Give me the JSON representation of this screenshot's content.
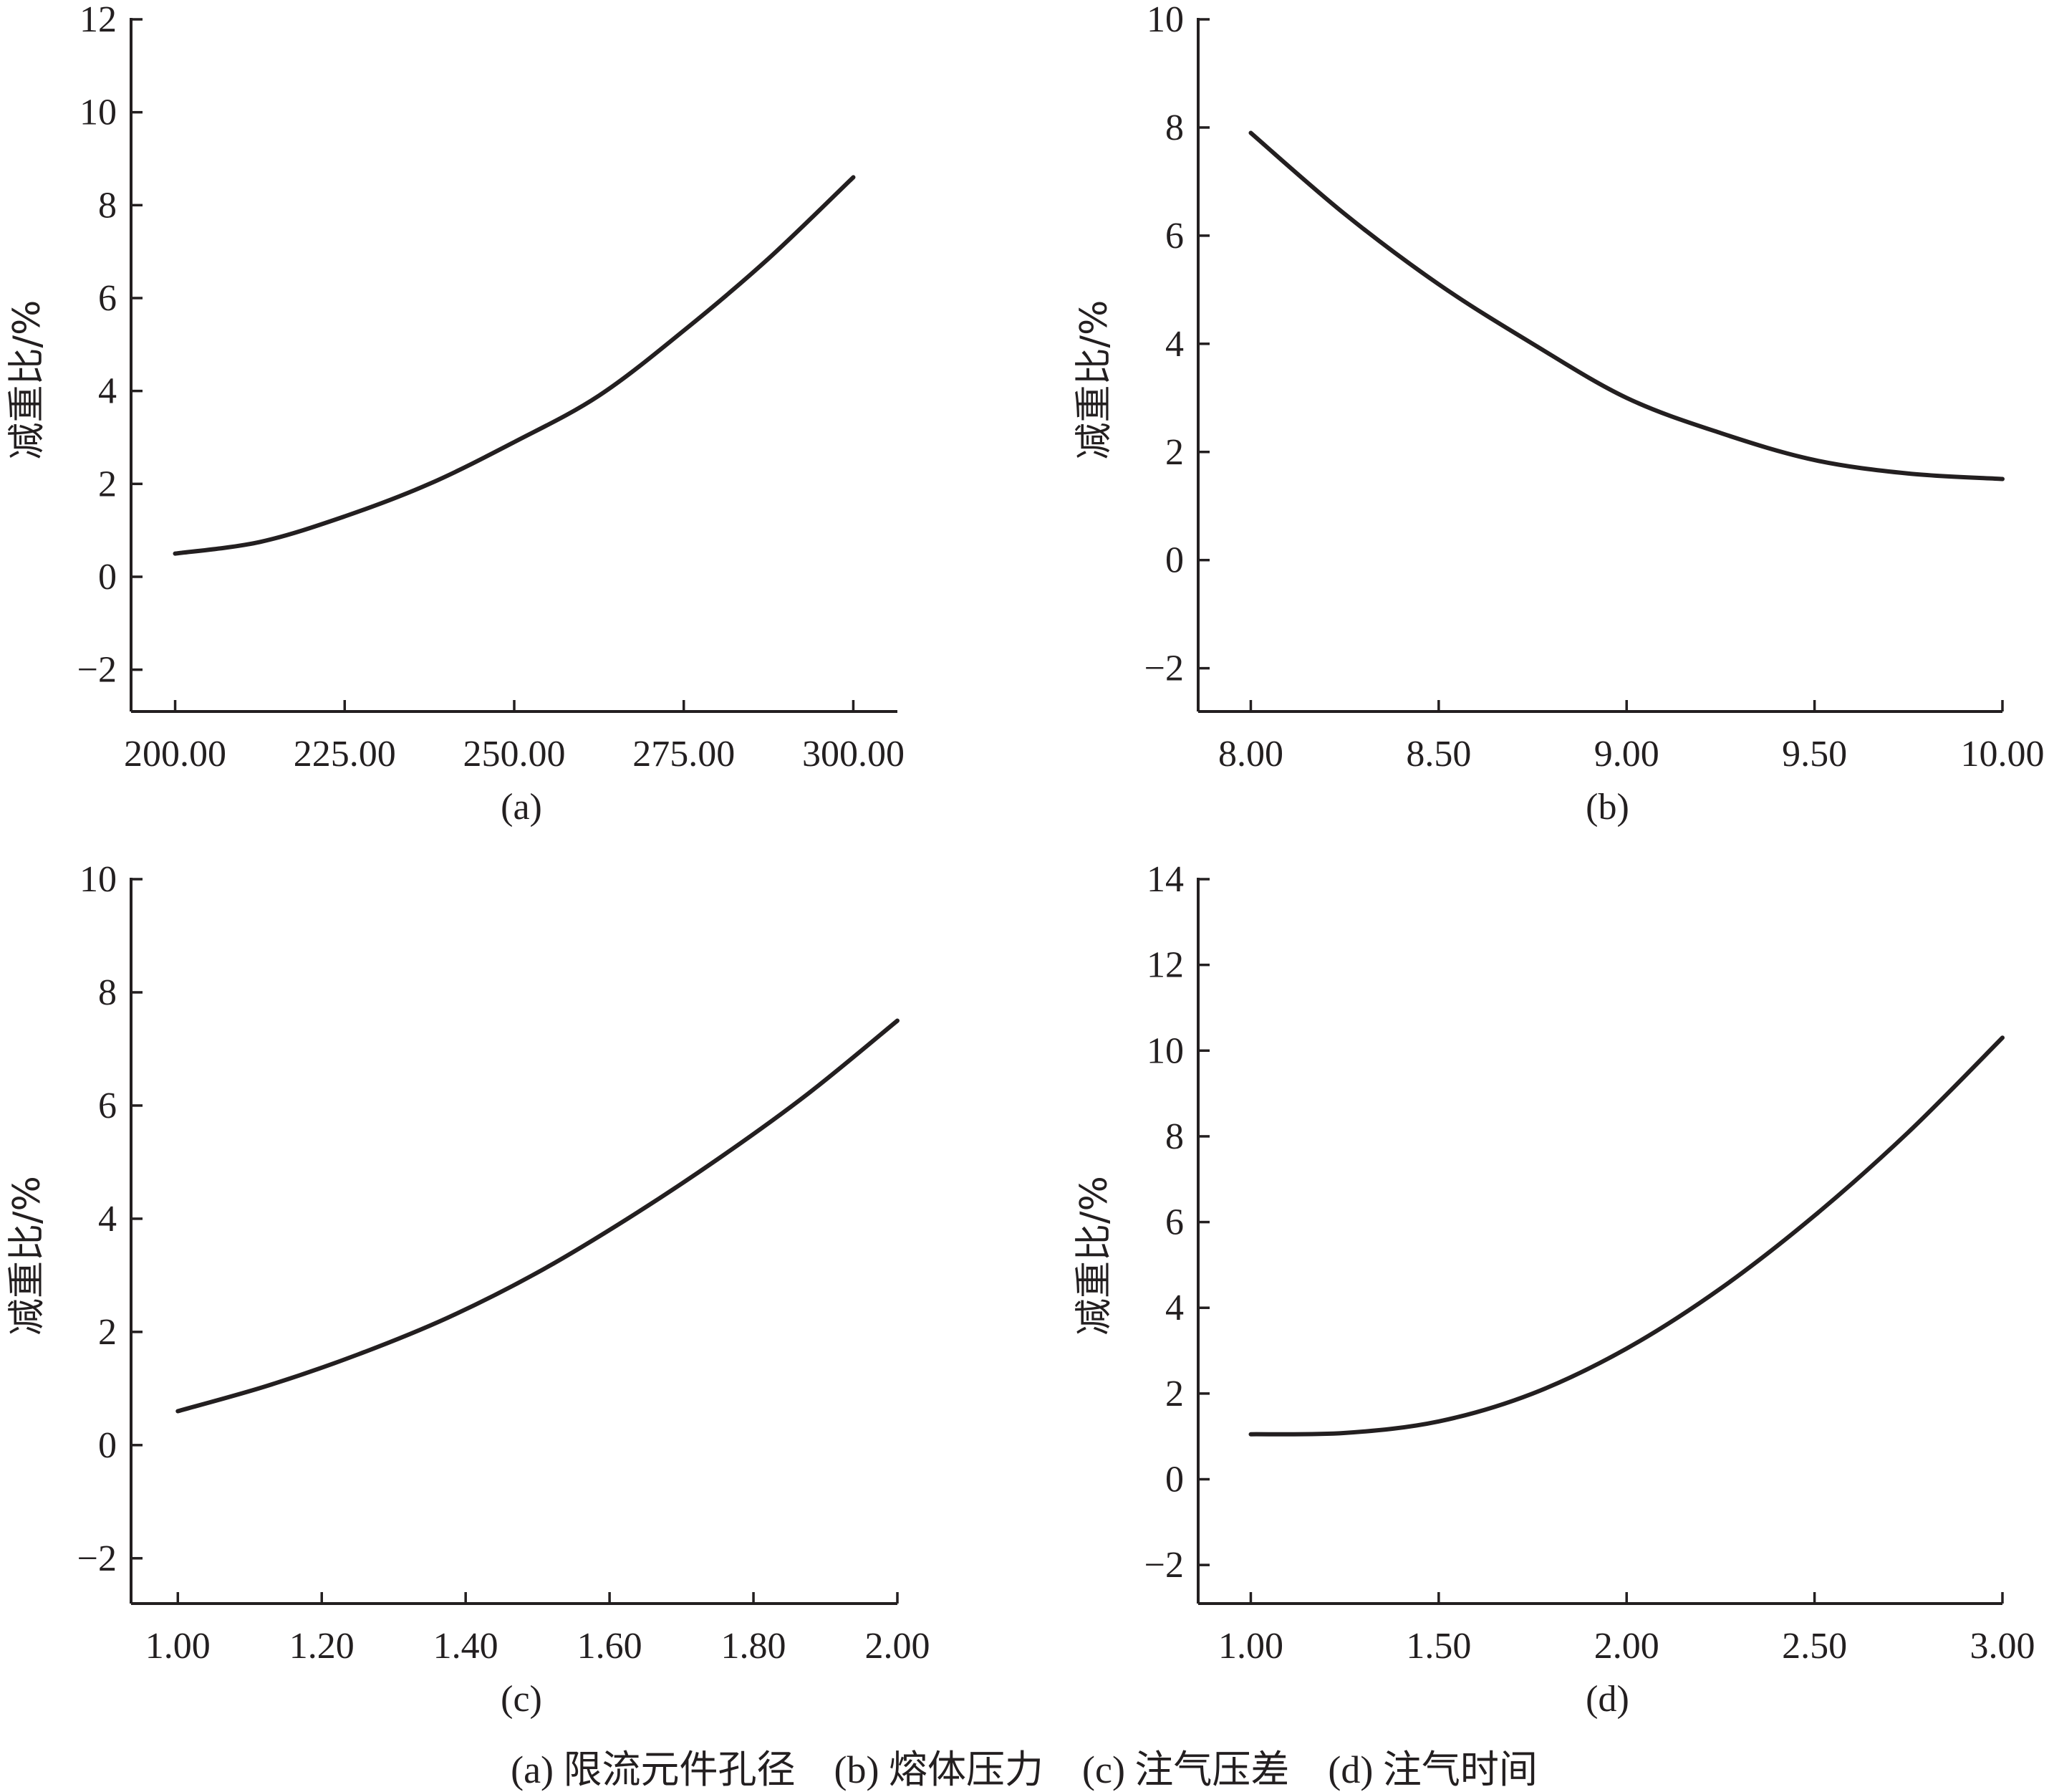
{
  "chart_data": [
    {
      "type": "line",
      "panel_label": "(a)",
      "ylabel": "减重比/%",
      "xlabel": "",
      "xlim": [
        193.5,
        306.5
      ],
      "ylim": [
        -2.9,
        12
      ],
      "xticks": [
        "200.00",
        "225.00",
        "250.00",
        "275.00",
        "300.00"
      ],
      "xtick_values": [
        200,
        225,
        250,
        275,
        300
      ],
      "yticks": [
        "12",
        "10",
        "8",
        "6",
        "4",
        "2",
        "0",
        "−2"
      ],
      "ytick_values": [
        12,
        10,
        8,
        6,
        4,
        2,
        0,
        -2
      ],
      "series": [
        {
          "x": [
            200,
            212.5,
            225,
            237.5,
            250,
            262.5,
            275,
            287.5,
            300
          ],
          "y": [
            0.5,
            0.75,
            1.3,
            2.0,
            2.9,
            3.9,
            5.3,
            6.85,
            8.6
          ]
        }
      ]
    },
    {
      "type": "line",
      "panel_label": "(b)",
      "ylabel": "减重比/%",
      "xlabel": "",
      "xlim": [
        7.86,
        10.0
      ],
      "ylim": [
        -2.8,
        10
      ],
      "xticks": [
        "8.00",
        "8.50",
        "9.00",
        "9.50",
        "10.00"
      ],
      "xtick_values": [
        8.0,
        8.5,
        9.0,
        9.5,
        10.0
      ],
      "yticks": [
        "10",
        "8",
        "6",
        "4",
        "2",
        "0",
        "−2"
      ],
      "ytick_values": [
        10,
        8,
        6,
        4,
        2,
        0,
        -2
      ],
      "series": [
        {
          "x": [
            8.0,
            8.25,
            8.5,
            8.75,
            9.0,
            9.25,
            9.5,
            9.75,
            10.0
          ],
          "y": [
            7.9,
            6.4,
            5.1,
            4.0,
            3.0,
            2.35,
            1.85,
            1.6,
            1.5
          ]
        }
      ]
    },
    {
      "type": "line",
      "panel_label": "(c)",
      "ylabel": "减重比/%",
      "xlabel": "",
      "xlim": [
        0.935,
        2.0
      ],
      "ylim": [
        -2.8,
        10
      ],
      "xticks": [
        "1.00",
        "1.20",
        "1.40",
        "1.60",
        "1.80",
        "2.00"
      ],
      "xtick_values": [
        1.0,
        1.2,
        1.4,
        1.6,
        1.8,
        2.0
      ],
      "yticks": [
        "10",
        "8",
        "6",
        "4",
        "2",
        "0",
        "−2"
      ],
      "ytick_values": [
        10,
        8,
        6,
        4,
        2,
        0,
        -2
      ],
      "series": [
        {
          "x": [
            1.0,
            1.125,
            1.25,
            1.375,
            1.5,
            1.625,
            1.75,
            1.875,
            2.0
          ],
          "y": [
            0.6,
            1.05,
            1.6,
            2.25,
            3.05,
            4.0,
            5.05,
            6.2,
            7.5
          ]
        }
      ]
    },
    {
      "type": "line",
      "panel_label": "(d)",
      "ylabel": "减重比/%",
      "xlabel": "",
      "xlim": [
        0.86,
        3.0
      ],
      "ylim": [
        -2.9,
        14
      ],
      "xticks": [
        "1.00",
        "1.50",
        "2.00",
        "2.50",
        "3.00"
      ],
      "xtick_values": [
        1.0,
        1.5,
        2.0,
        2.5,
        3.0
      ],
      "yticks": [
        "14",
        "12",
        "10",
        "8",
        "6",
        "4",
        "2",
        "0",
        "−2"
      ],
      "ytick_values": [
        14,
        12,
        10,
        8,
        6,
        4,
        2,
        0,
        -2
      ],
      "series": [
        {
          "x": [
            1.0,
            1.25,
            1.5,
            1.75,
            2.0,
            2.25,
            2.5,
            2.75,
            3.0
          ],
          "y": [
            1.05,
            1.08,
            1.35,
            2.0,
            3.05,
            4.45,
            6.15,
            8.1,
            10.3
          ]
        }
      ]
    }
  ],
  "caption": "(a) 限流元件孔径　(b) 熔体压力　(c) 注气压差　(d) 注气时间"
}
